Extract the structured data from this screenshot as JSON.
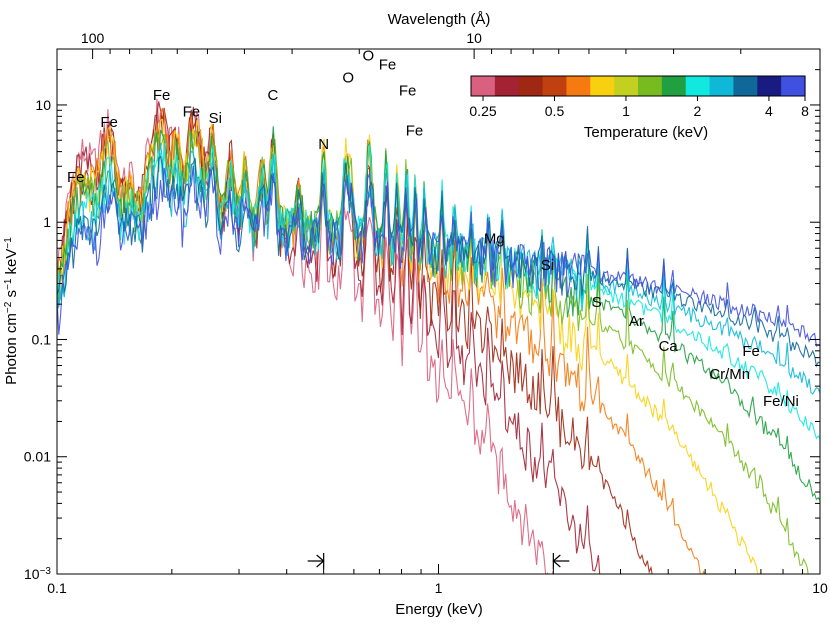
{
  "chart_data": {
    "type": "line",
    "title": "",
    "xlabel": "Energy (keV)",
    "ylabel_parts": [
      "Photon cm",
      "−2",
      " s",
      "−1",
      " keV",
      "−1"
    ],
    "top_axis_label": "Wavelength (Å)",
    "x_scale": "log",
    "y_scale": "log",
    "xlim": [
      0.1,
      10
    ],
    "ylim": [
      0.001,
      30
    ],
    "x_ticks": [
      {
        "value": 0.1,
        "label": "0.1"
      },
      {
        "value": 1,
        "label": "1"
      },
      {
        "value": 10,
        "label": "10"
      }
    ],
    "y_ticks": [
      {
        "value": 0.001,
        "base": "10",
        "exp": "−3"
      },
      {
        "value": 0.01,
        "label": "0.01"
      },
      {
        "value": 0.1,
        "label": "0.1"
      },
      {
        "value": 1,
        "label": "1"
      },
      {
        "value": 10,
        "label": "10"
      }
    ],
    "top_ticks": [
      {
        "wavelength": 100,
        "label": "100"
      },
      {
        "wavelength": 10,
        "label": "10"
      }
    ],
    "colorbar": {
      "label": "Temperature (keV)",
      "colors": [
        "#d9607f",
        "#a32335",
        "#9e2812",
        "#c04010",
        "#f57a10",
        "#f9d010",
        "#c2d020",
        "#78bb20",
        "#20a040",
        "#10e8e0",
        "#10b8d8",
        "#106898",
        "#181c80",
        "#4050e0"
      ],
      "ticks": [
        {
          "frac": 0.036,
          "label": "0.25"
        },
        {
          "frac": 0.25,
          "label": "0.5"
        },
        {
          "frac": 0.464,
          "label": "1"
        },
        {
          "frac": 0.678,
          "label": "2"
        },
        {
          "frac": 0.892,
          "label": "4"
        },
        {
          "frac": 1.0,
          "label": "8"
        }
      ]
    },
    "series": [
      {
        "T": 0.25,
        "color": "#d9607f",
        "peak": 1.05,
        "cut": 1.1
      },
      {
        "T": 0.35,
        "color": "#a32335",
        "peak": 1.1,
        "cut": 1.4
      },
      {
        "T": 0.5,
        "color": "#9e2812",
        "peak": 1.2,
        "cut": 1.7
      },
      {
        "T": 0.7,
        "color": "#f57a10",
        "peak": 1.3,
        "cut": 2.0
      },
      {
        "T": 1.0,
        "color": "#f9d010",
        "peak": 1.3,
        "cut": 2.4
      },
      {
        "T": 1.4,
        "color": "#78bb20",
        "peak": 1.25,
        "cut": 2.8
      },
      {
        "T": 2.0,
        "color": "#20a040",
        "peak": 1.2,
        "cut": 3.4
      },
      {
        "T": 2.8,
        "color": "#10e8e0",
        "peak": 1.1,
        "cut": 4.1
      },
      {
        "T": 4.0,
        "color": "#10b8d8",
        "peak": 1.0,
        "cut": 5.0
      },
      {
        "T": 5.6,
        "color": "#106898",
        "peak": 0.95,
        "cut": 6.0
      },
      {
        "T": 8.0,
        "color": "#4050e0",
        "peak": 0.88,
        "cut": 7.5
      }
    ],
    "annotations": [
      {
        "text": "Fe",
        "x": 0.112,
        "y": 2.2
      },
      {
        "text": "Fe",
        "x": 0.137,
        "y": 6.5
      },
      {
        "text": "Fe",
        "x": 0.188,
        "y": 11
      },
      {
        "text": "Fe",
        "x": 0.225,
        "y": 8.0
      },
      {
        "text": "Si",
        "x": 0.26,
        "y": 7.0
      },
      {
        "text": "C",
        "x": 0.368,
        "y": 11
      },
      {
        "text": "N",
        "x": 0.5,
        "y": 4.2
      },
      {
        "text": "O",
        "x": 0.58,
        "y": 15.5
      },
      {
        "text": "O",
        "x": 0.655,
        "y": 24
      },
      {
        "text": "Fe",
        "x": 0.735,
        "y": 20
      },
      {
        "text": "Fe",
        "x": 0.83,
        "y": 12
      },
      {
        "text": "Fe",
        "x": 0.865,
        "y": 5.5
      },
      {
        "text": "Mg",
        "x": 1.4,
        "y": 0.66
      },
      {
        "text": "Si",
        "x": 1.93,
        "y": 0.39
      },
      {
        "text": "S",
        "x": 2.6,
        "y": 0.19
      },
      {
        "text": "Ar",
        "x": 3.3,
        "y": 0.13
      },
      {
        "text": "Ca",
        "x": 4.0,
        "y": 0.08
      },
      {
        "text": "Cr/Mn",
        "x": 5.8,
        "y": 0.046
      },
      {
        "text": "Fe",
        "x": 6.6,
        "y": 0.072
      },
      {
        "text": "Fe/Ni",
        "x": 7.9,
        "y": 0.027
      }
    ],
    "band_markers": [
      {
        "x": 0.5,
        "direction": "right"
      },
      {
        "x": 2.0,
        "direction": "left"
      }
    ],
    "grid": false,
    "legend": "top-right colorbar"
  }
}
